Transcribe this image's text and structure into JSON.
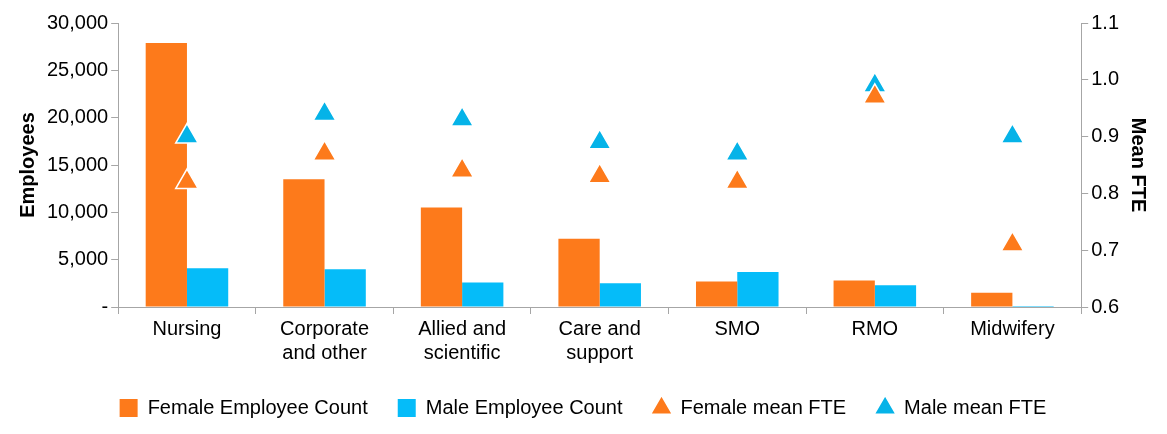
{
  "chart_data": {
    "type": "bar",
    "ylabel": "Employees",
    "y2label": "Mean FTE",
    "categories": [
      "Nursing",
      "Corporate and other",
      "Allied and scientific",
      "Care and support",
      "SMO",
      "RMO",
      "Midwifery"
    ],
    "series": [
      {
        "name": "Female Employee Count",
        "color": "#fd7a1b",
        "values": [
          27900,
          13500,
          10500,
          7200,
          2700,
          2800,
          1500
        ]
      },
      {
        "name": "Male Employee Count",
        "color": "#05bcf9",
        "values": [
          4100,
          4000,
          2600,
          2500,
          3700,
          2300,
          100
        ]
      },
      {
        "name": "Female mean FTE",
        "type": "scatter",
        "axis": "y2",
        "marker": "triangle",
        "color": "#fd7a1b",
        "x": [
          "Nursing",
          "Corporate and other",
          "Allied and scientific",
          "Care and support",
          "SMO",
          "RMO",
          "Midwifery"
        ],
        "values": [
          0.82,
          0.87,
          0.84,
          0.83,
          0.82,
          0.97,
          0.71
        ]
      },
      {
        "name": "Male mean FTE",
        "type": "scatter",
        "axis": "y2",
        "marker": "triangle",
        "color": "#05b3e8",
        "x": [
          "Nursing",
          "Corporate and other",
          "Allied and scientific",
          "Care and support",
          "SMO",
          "RMO",
          "Midwifery"
        ],
        "values": [
          0.9,
          0.94,
          0.93,
          0.89,
          0.87,
          0.99,
          0.9
        ]
      }
    ],
    "ylim": [
      0,
      30000
    ],
    "yticks": [
      {
        "value": 0,
        "label": "-"
      },
      {
        "value": 5000,
        "label": "5,000"
      },
      {
        "value": 10000,
        "label": "10,000"
      },
      {
        "value": 15000,
        "label": "15,000"
      },
      {
        "value": 20000,
        "label": "20,000"
      },
      {
        "value": 25000,
        "label": "25,000"
      },
      {
        "value": 30000,
        "label": "30,000"
      }
    ],
    "y2lim": [
      0.6,
      1.1
    ],
    "y2ticks": [
      {
        "value": 0.6,
        "label": "0.6"
      },
      {
        "value": 0.7,
        "label": "0.7"
      },
      {
        "value": 0.8,
        "label": "0.8"
      },
      {
        "value": 0.9,
        "label": "0.9"
      },
      {
        "value": 1.0,
        "label": "1.0"
      },
      {
        "value": 1.1,
        "label": "1.1"
      }
    ],
    "grid": false,
    "legend": "bottom"
  }
}
